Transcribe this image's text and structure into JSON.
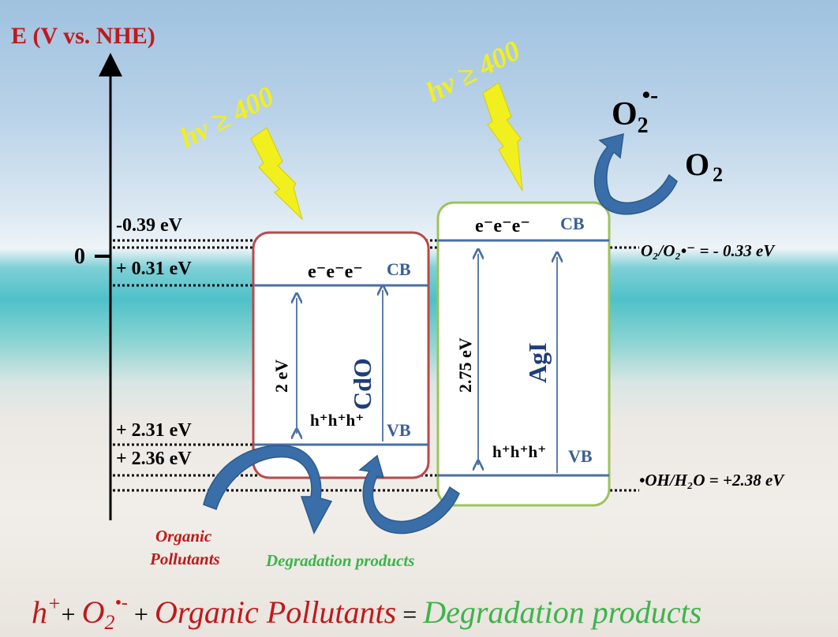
{
  "axis": {
    "title": "E (V vs. NHE)",
    "zero": "0"
  },
  "levels": {
    "agi_cb": "-0.39 eV",
    "cdo_cb": "+ 0.31 eV",
    "cdo_vb": "+ 2.31 eV",
    "agi_vb": "+ 2.36 eV"
  },
  "light": {
    "left": "hv ≥ 400",
    "right": "hv ≥ 400"
  },
  "cdo": {
    "name": "CdO",
    "gap": "2 eV",
    "electrons": "e⁻e⁻e⁻",
    "holes": "h⁺h⁺h⁺",
    "cb": "CB",
    "vb": "VB"
  },
  "agi": {
    "name": "AgI",
    "gap": "2.75 eV",
    "electrons": "e⁻e⁻e⁻",
    "holes": "h⁺h⁺h⁺",
    "cb": "CB",
    "vb": "VB"
  },
  "species": {
    "o2": "O",
    "o2_sub": "2",
    "o2rad": "O",
    "o2rad_sub": "2",
    "o2rad_sup": "•-"
  },
  "redox": {
    "o2_couple": "O₂/O₂•⁻ = - 0.33 eV",
    "oh_couple": "•OH/H₂O = +2.38 eV"
  },
  "labels": {
    "organic_pollutants": "Organic\nPollutants",
    "degradation_products": "Degradation products"
  },
  "equation": {
    "h": "h",
    "h_sup": "+",
    "plus1": "+ ",
    "o2": "O",
    "o2_sub": "2",
    "o2_sup": "•-",
    "plus2": " + ",
    "organic": "Organic Pollutants",
    "equals": " = ",
    "products": "Degradation products"
  },
  "colors": {
    "title_red": "#c0191b",
    "cdo_border": "#b84a4a",
    "agi_border": "#9cc35a",
    "blue_line": "#4a6fa5",
    "yellow": "#f2ef1e",
    "green_text": "#3cb44b",
    "arrow_blue": "#3a6ea8"
  }
}
